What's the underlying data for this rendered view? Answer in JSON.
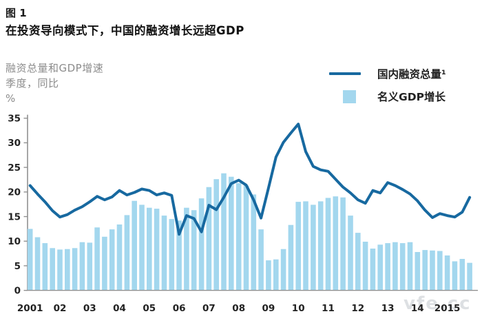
{
  "figure_label": "图 1",
  "title": "在投资导向模式下，中国的融资增长远超GDP",
  "y_axis_annotation": {
    "line1": "融资总量和GDP增速",
    "line2": "季度，同比",
    "line3": "%"
  },
  "legend": {
    "line_label": "国内融资总量¹",
    "bar_label": "名义GDP增长"
  },
  "watermark": "vfe.cc",
  "colors": {
    "line": "#1769A0",
    "bar": "#A3D7EE",
    "axis": "#909090",
    "tick_text": "#222222",
    "annotation_gray": "#8C8C8C"
  },
  "chart_data": {
    "type": "combo: line + bar",
    "title": "在投资导向模式下，中国的融资增长远超GDP",
    "ylabel": "融资总量和GDP增速，季度，同比，%",
    "x_unit": "quarter",
    "start_year": 2001,
    "quarters_per_year": 4,
    "x_year_tick_labels": [
      "2001",
      "02",
      "03",
      "04",
      "05",
      "06",
      "07",
      "08",
      "09",
      "10",
      "11",
      "12",
      "13",
      "14",
      "2015"
    ],
    "ylim": [
      0,
      35
    ],
    "y_ticks": [
      0,
      5,
      10,
      15,
      20,
      25,
      30,
      35
    ],
    "grid": "off",
    "legend_position": "top-right",
    "series": [
      {
        "name": "国内融资总量¹",
        "type": "line",
        "values": [
          21.3,
          19.6,
          18.0,
          16.2,
          14.9,
          15.4,
          16.3,
          17.0,
          18.0,
          19.1,
          18.4,
          19.0,
          20.3,
          19.4,
          19.9,
          20.6,
          20.3,
          19.4,
          19.8,
          19.3,
          11.4,
          15.2,
          14.6,
          11.9,
          17.3,
          16.4,
          18.9,
          21.7,
          22.4,
          21.4,
          18.4,
          14.7,
          20.8,
          27.1,
          30.1,
          32.0,
          33.8,
          28.2,
          25.2,
          24.5,
          24.2,
          22.6,
          21.0,
          19.8,
          18.4,
          17.7,
          20.3,
          19.8,
          21.9,
          21.3,
          20.5,
          19.6,
          18.2,
          16.3,
          14.8,
          15.6,
          15.2,
          14.9,
          15.9,
          18.9
        ]
      },
      {
        "name": "名义GDP增长",
        "type": "bar",
        "values": [
          12.5,
          10.8,
          9.6,
          8.6,
          8.3,
          8.4,
          8.6,
          9.8,
          9.7,
          12.8,
          10.9,
          12.4,
          13.4,
          15.3,
          18.2,
          17.4,
          16.8,
          16.6,
          15.2,
          14.5,
          14.2,
          16.8,
          16.3,
          18.7,
          21.0,
          22.6,
          23.8,
          23.1,
          21.8,
          21.3,
          19.5,
          12.4,
          6.1,
          6.3,
          8.4,
          13.3,
          18.0,
          18.1,
          17.4,
          18.1,
          18.8,
          19.1,
          18.9,
          15.2,
          11.7,
          9.9,
          8.5,
          9.3,
          9.6,
          9.8,
          9.6,
          9.8,
          7.8,
          8.2,
          8.1,
          8.0,
          7.1,
          5.9,
          6.4,
          5.6
        ]
      }
    ]
  }
}
